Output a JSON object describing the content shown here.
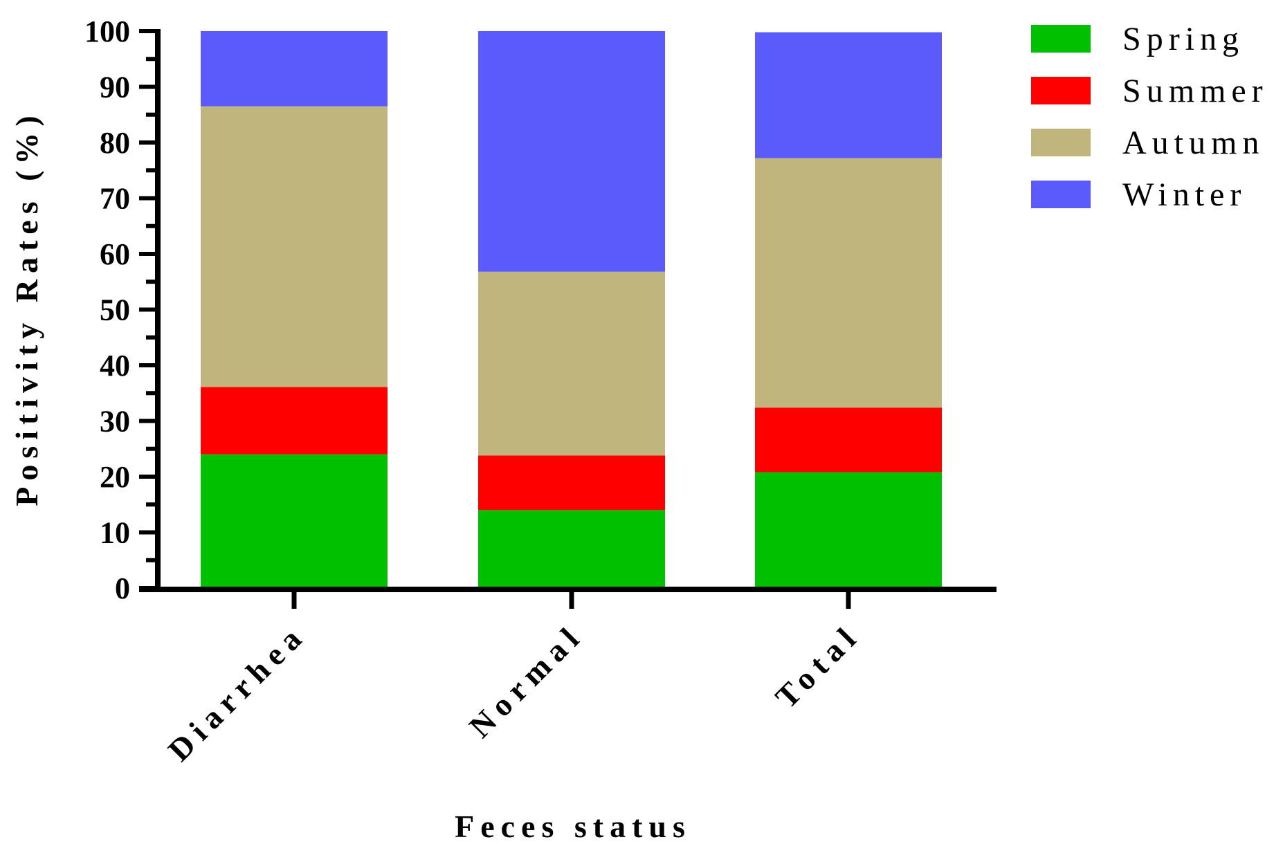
{
  "chart_data": {
    "type": "bar",
    "stacked": true,
    "categories": [
      "Diarrhea",
      "Normal",
      "Total"
    ],
    "series": [
      {
        "name": "Spring",
        "color": "#00c000",
        "values": [
          24.0,
          14.0,
          20.8
        ]
      },
      {
        "name": "Summer",
        "color": "#ff0000",
        "values": [
          12.1,
          9.8,
          11.6
        ]
      },
      {
        "name": "Autumn",
        "color": "#c0b57c",
        "values": [
          50.4,
          33.0,
          44.8
        ]
      },
      {
        "name": "Winter",
        "color": "#5b5bfb",
        "values": [
          13.5,
          43.2,
          22.6
        ]
      }
    ],
    "title": "",
    "xlabel": "Feces status",
    "ylabel": "Positivity Rates (%)",
    "ylim": [
      0,
      100
    ],
    "yticks": [
      "0",
      "10",
      "20",
      "30",
      "40",
      "50",
      "60",
      "70",
      "80",
      "90",
      "100"
    ],
    "legend_position": "top-right",
    "grid": false
  }
}
